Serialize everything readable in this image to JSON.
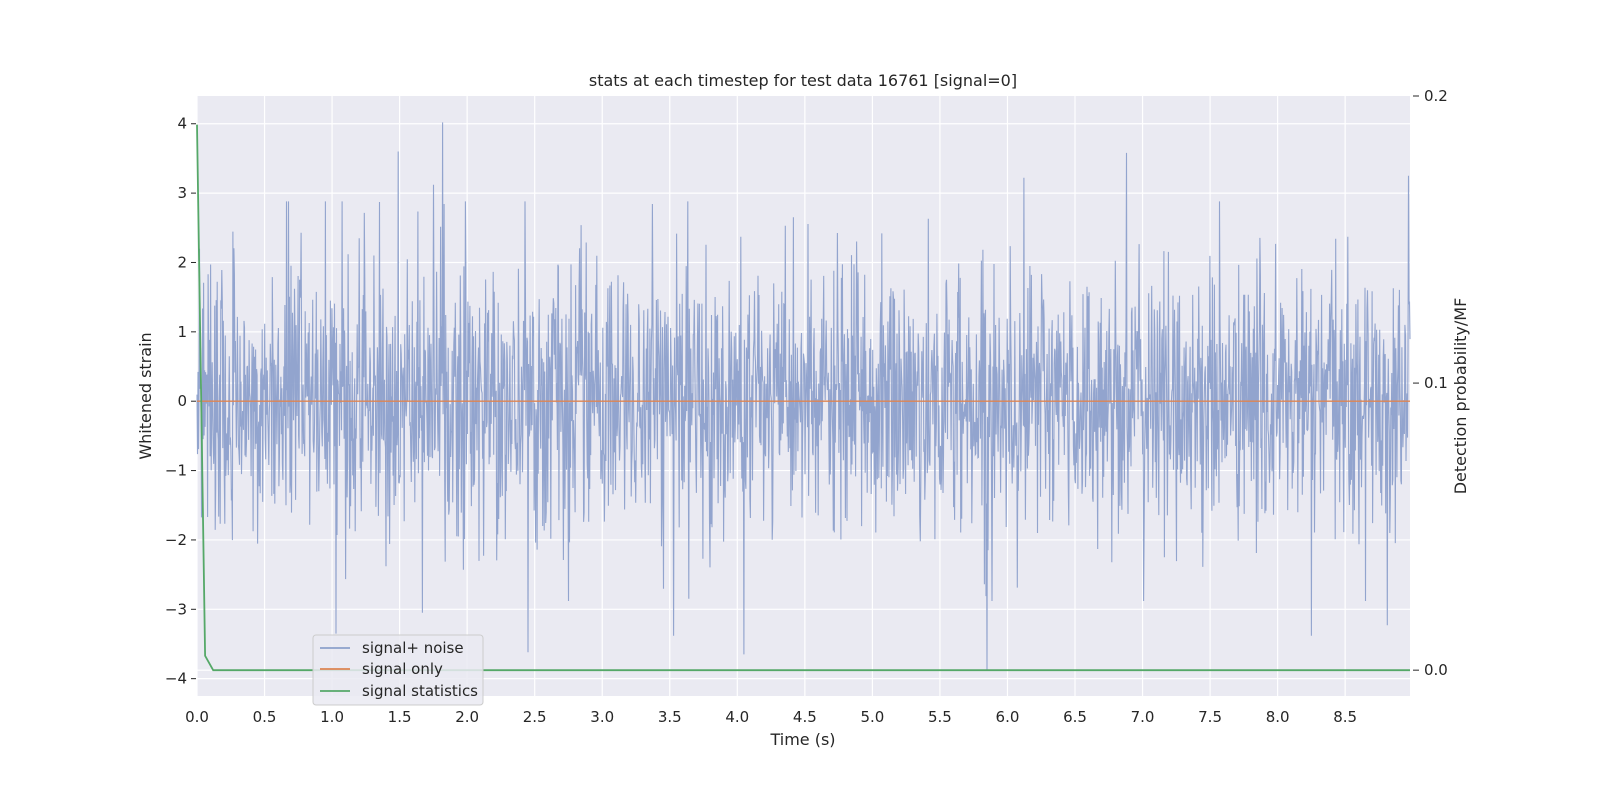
{
  "chart_data": {
    "type": "line",
    "title": "stats at each timestep for test data 16761 [signal=0]",
    "xlabel": "Time (s)",
    "ylabel": "Whitened strain",
    "y2label": "Detection probability/MF",
    "xlim": [
      0.0,
      8.98
    ],
    "ylim": [
      -4.25,
      4.4
    ],
    "y2lim": [
      -0.009,
      0.2
    ],
    "x_ticks": [
      0.0,
      0.5,
      1.0,
      1.5,
      2.0,
      2.5,
      3.0,
      3.5,
      4.0,
      4.5,
      5.0,
      5.5,
      6.0,
      6.5,
      7.0,
      7.5,
      8.0,
      8.5
    ],
    "x_tick_labels": [
      "0.0",
      "0.5",
      "1.0",
      "1.5",
      "2.0",
      "2.5",
      "3.0",
      "3.5",
      "4.0",
      "4.5",
      "5.0",
      "5.5",
      "6.0",
      "6.5",
      "7.0",
      "7.5",
      "8.0",
      "8.5"
    ],
    "y_ticks": [
      4,
      3,
      2,
      1,
      0,
      -1,
      -2,
      -3,
      -4
    ],
    "y_tick_labels": [
      "4",
      "3",
      "2",
      "1",
      "0",
      "−1",
      "−2",
      "−3",
      "−4"
    ],
    "y2_ticks": [
      0.2,
      0.1,
      0.0
    ],
    "y2_tick_labels": [
      "0.2",
      "0.1",
      "0.0"
    ],
    "grid": true,
    "legend_position": "lower-left",
    "colors": {
      "signal_noise": "#8da0cb",
      "signal_only": "#dd8452",
      "signal_statistics": "#55a868",
      "axes_bg": "#eaeaf2",
      "grid": "#ffffff"
    },
    "series": [
      {
        "name": "signal+ noise",
        "axis": "left",
        "description_range": [
          -4.0,
          4.0
        ],
        "peaks": [
          {
            "x": 1.82,
            "y": 4.02
          },
          {
            "x": 1.49,
            "y": 3.6
          },
          {
            "x": 6.88,
            "y": 3.58
          },
          {
            "x": 8.97,
            "y": 3.25
          },
          {
            "x": 6.12,
            "y": 3.22
          },
          {
            "x": 1.75,
            "y": 3.12
          },
          {
            "x": 5.85,
            "y": -3.88
          },
          {
            "x": 4.05,
            "y": -3.65
          },
          {
            "x": 2.45,
            "y": -3.62
          },
          {
            "x": 3.53,
            "y": -3.38
          },
          {
            "x": 8.25,
            "y": -3.38
          },
          {
            "x": 1.03,
            "y": -3.35
          },
          {
            "x": 1.67,
            "y": -3.05
          },
          {
            "x": 8.81,
            "y": -3.23
          }
        ]
      },
      {
        "name": "signal only",
        "axis": "left",
        "x": [
          0.0,
          8.98
        ],
        "y": [
          0.0,
          0.0
        ]
      },
      {
        "name": "signal statistics",
        "axis": "right",
        "x": [
          0.0,
          0.06,
          0.12,
          0.25,
          8.98
        ],
        "y": [
          0.19,
          0.005,
          0.0,
          0.0,
          0.0
        ]
      }
    ]
  }
}
